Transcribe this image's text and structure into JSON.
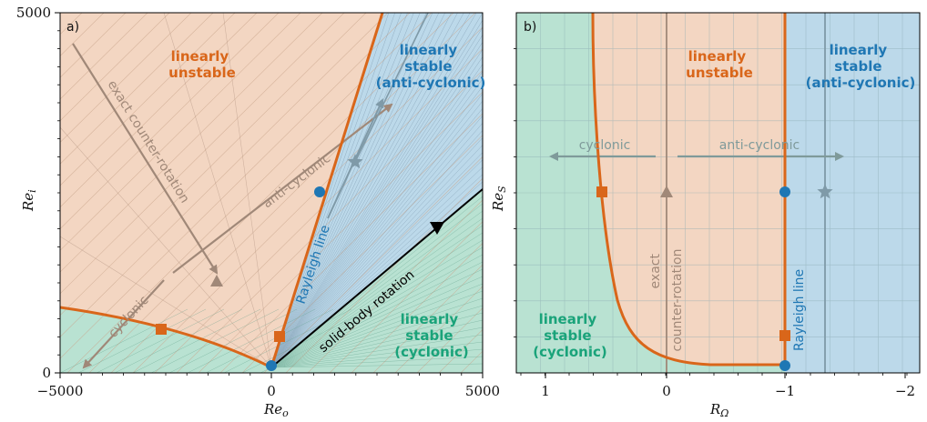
{
  "colors": {
    "unstable": "#f3d6c2",
    "stable_anticyclonic": "#bcd9ea",
    "stable_cyclonic": "#b9e2d2",
    "curve": "#d9661a",
    "rayleigh": "#1f77b4",
    "gray_arrow": "#a08878",
    "gray2": "#8a9aa0",
    "solid_body": "#000000",
    "green_text": "#1aa37a",
    "orange_text": "#d9661a",
    "blue_text": "#1f77b4"
  },
  "panel_a": {
    "label": "a)",
    "xlabel": "Re",
    "xlabel_sub": "o",
    "ylabel": "Re",
    "ylabel_sub": "i",
    "x_ticks": [
      "−5000",
      "0",
      "5000"
    ],
    "y_ticks": [
      "0",
      "5000"
    ],
    "region_unstable": [
      "linearly",
      "unstable"
    ],
    "region_stable_anti": [
      "linearly",
      "stable",
      "(anti-cyclonic)"
    ],
    "region_stable_cyc": [
      "linearly",
      "stable",
      "(cyclonic)"
    ],
    "line_exact": "exact counter-rotation",
    "line_anti": "anti-cyclonic",
    "line_cyc": "cyclonic",
    "line_rayleigh": "Rayleigh line",
    "line_solid": "solid-body rotation"
  },
  "panel_b": {
    "label": "b)",
    "xlabel": "R",
    "xlabel_sub": "Ω",
    "ylabel": "Re",
    "ylabel_sub": "S",
    "x_ticks": [
      "1",
      "0",
      "−1",
      "−2"
    ],
    "region_unstable": [
      "linearly",
      "unstable"
    ],
    "region_stable_anti": [
      "linearly",
      "stable",
      "(anti-cyclonic)"
    ],
    "region_stable_cyc": [
      "linearly",
      "stable",
      "(cyclonic)"
    ],
    "arrow_cyc": "cyclonic",
    "arrow_anti": "anti-cyclonic",
    "line_exact": [
      "exact",
      "counter-rotation"
    ],
    "line_rayleigh": "Rayleigh line"
  }
}
